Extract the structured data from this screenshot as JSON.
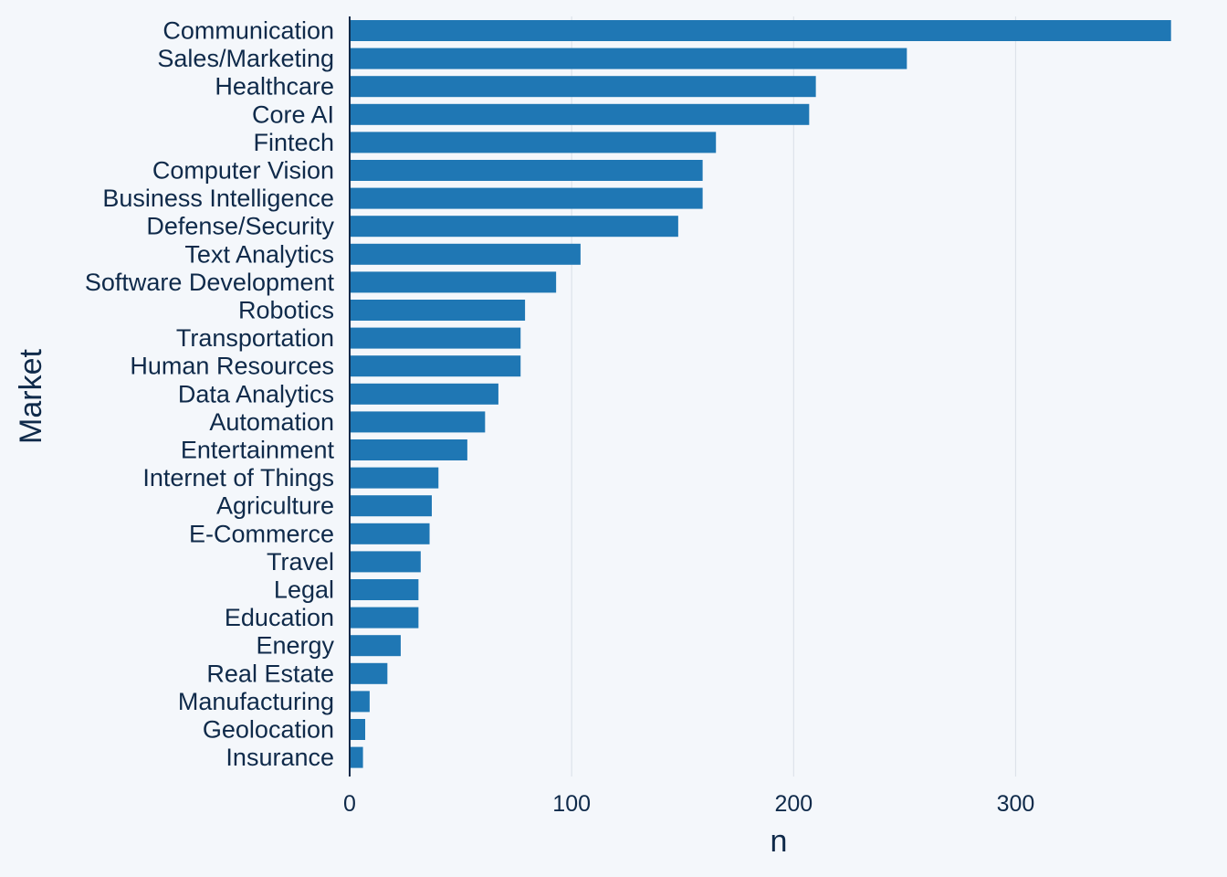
{
  "chart_data": {
    "type": "bar",
    "orientation": "horizontal",
    "categories": [
      "Communication",
      "Sales/Marketing",
      "Healthcare",
      "Core AI",
      "Fintech",
      "Computer Vision",
      "Business Intelligence",
      "Defense/Security",
      "Text Analytics",
      "Software Development",
      "Robotics",
      "Transportation",
      "Human Resources",
      "Data Analytics",
      "Automation",
      "Entertainment",
      "Internet of Things",
      "Agriculture",
      "E-Commerce",
      "Travel",
      "Legal",
      "Education",
      "Energy",
      "Real Estate",
      "Manufacturing",
      "Geolocation",
      "Insurance"
    ],
    "values": [
      370,
      251,
      210,
      207,
      165,
      159,
      159,
      148,
      104,
      93,
      79,
      77,
      77,
      67,
      61,
      53,
      40,
      37,
      36,
      32,
      31,
      31,
      23,
      17,
      9,
      7,
      6
    ],
    "xlabel": "n",
    "ylabel": "Market",
    "xlim": [
      0,
      380
    ],
    "xticks": [
      0,
      100,
      200,
      300
    ],
    "tick_labels": [
      "0",
      "100",
      "200",
      "300"
    ],
    "grid": "vertical major lines",
    "legend": "none"
  },
  "colors": {
    "background": "#f4f7fb",
    "bar": "#1f77b4",
    "grid": "#dde3ea",
    "axis": "#0f2a4a",
    "text": "#0f2a4a"
  }
}
